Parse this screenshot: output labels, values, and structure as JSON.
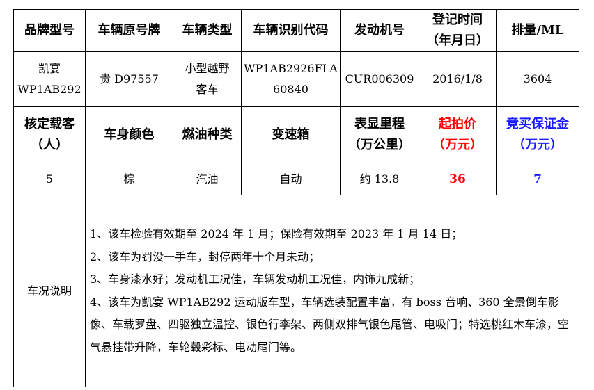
{
  "header_row1": [
    "品牌型号",
    "车辆原号牌",
    "车辆类型",
    "车辆识别代码",
    "发动机号",
    "登记时间\n（年月日）",
    "排量/ML"
  ],
  "values_row1": [
    "凯宴\nWP1AB292",
    "贵 D97557",
    "小型越野\n客车",
    "WP1AB2926FLA\n60840",
    "CUR006309",
    "2016/1/8",
    "3604"
  ],
  "header_row2": [
    "核定载客\n（人）",
    "车身颜色",
    "燃油种类",
    "变速箱",
    "表显里程\n（万公里）",
    "起拍价\n（万元）",
    "竞买保证金\n（万元）"
  ],
  "values_row2": [
    "5",
    "棕",
    "汽油",
    "自动",
    "约 13.8",
    "36",
    "7"
  ],
  "notes_label": "车况说明",
  "notes": [
    "1、该车检验有效期至 2024 年 1 月；保险有效期至 2023 年 1 月 14 日；",
    "2、该车为罚没一手车，封停两年十个月未动；",
    "3、车身漆水好；发动机工况佳，车辆发动机工况佳，内饰九成新；",
    "4、该车为凯宴 WP1AB292 运动版车型，车辆选装配置丰富，有 boss 音响、360 全景倒车影像、车载罗盘、四驱独立温控、银色行李架、两侧双排气银色尾管、电吸门；特选桃红木车漆，空气悬挂带升降，车轮毂彩标、电动尾门等。"
  ],
  "colors": {
    "start_price": "#ff0000",
    "deposit": "#1a1aff"
  }
}
